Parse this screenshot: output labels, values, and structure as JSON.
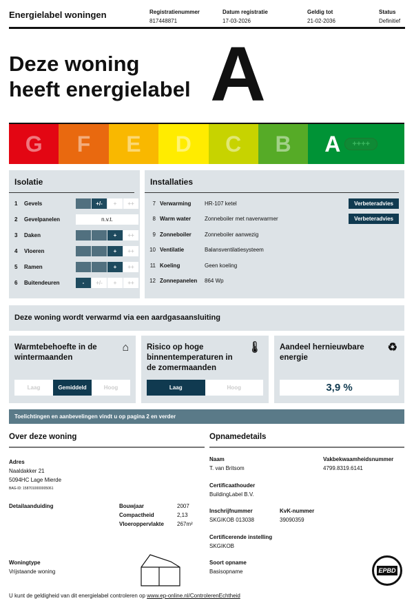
{
  "header": {
    "title": "Energielabel woningen",
    "fields": [
      {
        "label": "Registratienummer",
        "value": "817448871"
      },
      {
        "label": "Datum registratie",
        "value": "17-03-2026"
      },
      {
        "label": "Geldig tot",
        "value": "21-02-2036"
      },
      {
        "label": "Status",
        "value": "Definitief"
      }
    ]
  },
  "hero": {
    "line1": "Deze woning",
    "line2": "heeft energielabel",
    "label": "A"
  },
  "scale": {
    "classes": [
      "G",
      "F",
      "E",
      "D",
      "C",
      "B",
      "A"
    ],
    "current": "A",
    "current_plus": "++++",
    "colors": [
      "#e30613",
      "#e9690f",
      "#f9b800",
      "#ffec00",
      "#c7d300",
      "#56ab27",
      "#009336"
    ]
  },
  "isolatie": {
    "title": "Isolatie",
    "scale_labels": [
      "-",
      "+/-",
      "+",
      "++"
    ],
    "rows": [
      {
        "n": "1",
        "label": "Gevels",
        "level": "+/-"
      },
      {
        "n": "2",
        "label": "Gevelpanelen",
        "value": "n.v.t."
      },
      {
        "n": "3",
        "label": "Daken",
        "level": "+"
      },
      {
        "n": "4",
        "label": "Vloeren",
        "level": "+"
      },
      {
        "n": "5",
        "label": "Ramen",
        "level": "+"
      },
      {
        "n": "6",
        "label": "Buitendeuren",
        "level": "-"
      }
    ]
  },
  "installaties": {
    "title": "Installaties",
    "advice_label": "Verbeteradvies",
    "rows": [
      {
        "n": "7",
        "label": "Verwarming",
        "value": "HR-107 ketel",
        "advice": true
      },
      {
        "n": "8",
        "label": "Warm water",
        "value": "Zonneboiler met naverwarmer",
        "advice": true
      },
      {
        "n": "9",
        "label": "Zonneboiler",
        "value": "Zonneboiler aanwezig"
      },
      {
        "n": "10",
        "label": "Ventilatie",
        "value": "Balansventilatiesysteem"
      },
      {
        "n": "11",
        "label": "Koeling",
        "value": "Geen koeling"
      },
      {
        "n": "12",
        "label": "Zonnepanelen",
        "value": "864 Wp"
      }
    ]
  },
  "gas": "Deze woning wordt verwarmd via een aardgasaansluiting",
  "boxes": {
    "winter": {
      "title": "Warmtebehoefte in de wintermaanden",
      "options": [
        "Laag",
        "Gemiddeld",
        "Hoog"
      ],
      "selected": "Gemiddeld"
    },
    "summer": {
      "title": "Risico op hoge binnentemperaturen in de zomermaanden",
      "options": [
        "Laag",
        "Hoog"
      ],
      "selected": "Laag"
    },
    "renewable": {
      "title": "Aandeel hernieuwbare energie",
      "value": "3,9 %"
    }
  },
  "banner": "Toelichtingen en aanbevelingen vindt u op pagina 2 en verder",
  "woning": {
    "title": "Over deze woning",
    "adres_label": "Adres",
    "street": "Naaldakker 21",
    "city": "5094HC Lage Mierde",
    "bag": "BAG-ID: 1587010000005061",
    "detail_label": "Detailaanduiding",
    "props": [
      {
        "label": "Bouwjaar",
        "value": "2007"
      },
      {
        "label": "Compactheid",
        "value": "2,13"
      },
      {
        "label": "Vloeroppervlakte",
        "value": "267m²"
      }
    ],
    "type_label": "Woningtype",
    "type": "Vrijstaande woning"
  },
  "opname": {
    "title": "Opnamedetails",
    "naam_label": "Naam",
    "naam": "T. van Britsom",
    "vak_label": "Vakbekwaamheidsnummer",
    "vak": "4799.8319.6141",
    "cert_label": "Certificaathouder",
    "cert": "BuildingLabel B.V.",
    "insch_label": "Inschrijfnummer",
    "insch": "SKGIKOB 013038",
    "kvk_label": "KvK-nummer",
    "kvk": "39090359",
    "inst_label": "Certificerende instelling",
    "inst": "SKGIKOB",
    "soort_label": "Soort opname",
    "soort": "Basisopname",
    "logo_text": "EPBD"
  },
  "footer": {
    "text": "U kunt de geldigheid van dit energielabel controleren op ",
    "link": "www.ep-online.nl/ControlerenEchtheid"
  }
}
